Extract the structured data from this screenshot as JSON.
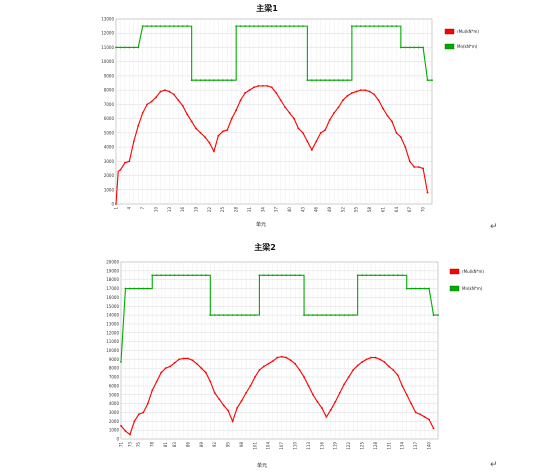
{
  "page": {
    "paragraph_mark": "↵"
  },
  "charts": [
    {
      "title": "主梁1",
      "xlabel": "单元",
      "x_ticks": [
        "1",
        "4",
        "7",
        "10",
        "13",
        "16",
        "19",
        "22",
        "25",
        "28",
        "31",
        "34",
        "37",
        "40",
        "43",
        "46",
        "49",
        "52",
        "55",
        "58",
        "61",
        "64",
        "67",
        "70"
      ],
      "y_ticks": [
        "0",
        "1000",
        "2000",
        "3000",
        "4000",
        "5000",
        "6000",
        "7000",
        "8000",
        "9000",
        "10000",
        "11000",
        "12000",
        "13000"
      ],
      "legend": [
        "rMu(kN*m)",
        "Mn(kN*m)"
      ]
    },
    {
      "title": "主梁2",
      "xlabel": "单元",
      "x_ticks": [
        "71",
        "73",
        "75",
        "78",
        "81",
        "83",
        "86",
        "89",
        "92",
        "95",
        "98",
        "101",
        "104",
        "107",
        "110",
        "113",
        "116",
        "119",
        "122",
        "125",
        "128",
        "131",
        "134",
        "137",
        "140"
      ],
      "y_ticks": [
        "0",
        "1000",
        "2000",
        "3000",
        "4000",
        "5000",
        "6000",
        "7000",
        "8000",
        "9000",
        "10000",
        "11000",
        "12000",
        "13000",
        "14000",
        "15000",
        "16000",
        "17000",
        "18000",
        "19000",
        "20000"
      ],
      "legend": [
        "rMu(kN*m)",
        "Mn(kN*m)"
      ]
    }
  ],
  "chart_data": [
    {
      "type": "line",
      "title": "主梁1",
      "xlabel": "单元",
      "ylabel": "",
      "x_range": [
        1,
        72
      ],
      "ylim": [
        0,
        13000
      ],
      "grid": true,
      "legend_position": "right",
      "series": [
        {
          "name": "rMu(kN*m)",
          "color": "#ff0000",
          "points": [
            [
              1,
              0
            ],
            [
              1.5,
              2300
            ],
            [
              2,
              2400
            ],
            [
              3,
              2900
            ],
            [
              4,
              3000
            ],
            [
              5,
              4400
            ],
            [
              6,
              5500
            ],
            [
              7,
              6400
            ],
            [
              8,
              7000
            ],
            [
              9,
              7200
            ],
            [
              10,
              7500
            ],
            [
              11,
              7900
            ],
            [
              12,
              8000
            ],
            [
              13,
              7900
            ],
            [
              14,
              7700
            ],
            [
              15,
              7300
            ],
            [
              16,
              6900
            ],
            [
              17,
              6300
            ],
            [
              18,
              5800
            ],
            [
              19,
              5300
            ],
            [
              20,
              5000
            ],
            [
              21,
              4700
            ],
            [
              22,
              4300
            ],
            [
              23,
              3700
            ],
            [
              24,
              4800
            ],
            [
              25,
              5100
            ],
            [
              26,
              5200
            ],
            [
              27,
              6000
            ],
            [
              28,
              6600
            ],
            [
              29,
              7300
            ],
            [
              30,
              7800
            ],
            [
              31,
              8000
            ],
            [
              32,
              8200
            ],
            [
              33,
              8300
            ],
            [
              34,
              8300
            ],
            [
              35,
              8300
            ],
            [
              36,
              8200
            ],
            [
              37,
              7800
            ],
            [
              38,
              7300
            ],
            [
              39,
              6800
            ],
            [
              40,
              6400
            ],
            [
              41,
              6000
            ],
            [
              42,
              5300
            ],
            [
              43,
              5000
            ],
            [
              44,
              4400
            ],
            [
              45,
              3800
            ],
            [
              46,
              4400
            ],
            [
              47,
              5000
            ],
            [
              48,
              5200
            ],
            [
              49,
              5900
            ],
            [
              50,
              6400
            ],
            [
              51,
              6800
            ],
            [
              52,
              7300
            ],
            [
              53,
              7600
            ],
            [
              54,
              7800
            ],
            [
              55,
              7900
            ],
            [
              56,
              8000
            ],
            [
              57,
              8000
            ],
            [
              58,
              7900
            ],
            [
              59,
              7700
            ],
            [
              60,
              7300
            ],
            [
              61,
              6700
            ],
            [
              62,
              6200
            ],
            [
              63,
              5800
            ],
            [
              64,
              5000
            ],
            [
              65,
              4700
            ],
            [
              66,
              4000
            ],
            [
              67,
              3000
            ],
            [
              68,
              2600
            ],
            [
              69,
              2600
            ],
            [
              70,
              2500
            ],
            [
              71,
              800
            ]
          ]
        },
        {
          "name": "Mn(kN*m)",
          "color": "#00aa00",
          "points": [
            [
              1,
              11000
            ],
            [
              6,
              11000
            ],
            [
              7,
              12500
            ],
            [
              18,
              12500
            ],
            [
              18,
              8700
            ],
            [
              28,
              8700
            ],
            [
              28,
              12500
            ],
            [
              44,
              12500
            ],
            [
              44,
              8700
            ],
            [
              54,
              8700
            ],
            [
              54,
              12500
            ],
            [
              65,
              12500
            ],
            [
              65,
              11000
            ],
            [
              70,
              11000
            ],
            [
              71,
              8700
            ],
            [
              72,
              8700
            ]
          ]
        }
      ]
    },
    {
      "type": "line",
      "title": "主梁2",
      "xlabel": "单元",
      "ylabel": "",
      "x_range": [
        71,
        142
      ],
      "ylim": [
        0,
        20000
      ],
      "grid": true,
      "legend_position": "right",
      "series": [
        {
          "name": "rMu(kN*m)",
          "color": "#ff0000",
          "points": [
            [
              71,
              1500
            ],
            [
              72,
              900
            ],
            [
              73,
              500
            ],
            [
              74,
              2000
            ],
            [
              75,
              2800
            ],
            [
              76,
              3000
            ],
            [
              77,
              4000
            ],
            [
              78,
              5500
            ],
            [
              79,
              6500
            ],
            [
              80,
              7500
            ],
            [
              81,
              8000
            ],
            [
              82,
              8200
            ],
            [
              83,
              8600
            ],
            [
              84,
              9000
            ],
            [
              85,
              9100
            ],
            [
              86,
              9100
            ],
            [
              87,
              8900
            ],
            [
              88,
              8500
            ],
            [
              89,
              8000
            ],
            [
              90,
              7500
            ],
            [
              91,
              6500
            ],
            [
              92,
              5200
            ],
            [
              93,
              4500
            ],
            [
              94,
              3800
            ],
            [
              95,
              3200
            ],
            [
              96,
              2000
            ],
            [
              97,
              3500
            ],
            [
              98,
              4300
            ],
            [
              99,
              5200
            ],
            [
              100,
              6000
            ],
            [
              101,
              7000
            ],
            [
              102,
              7800
            ],
            [
              103,
              8200
            ],
            [
              104,
              8500
            ],
            [
              105,
              8800
            ],
            [
              106,
              9200
            ],
            [
              107,
              9300
            ],
            [
              108,
              9200
            ],
            [
              109,
              8900
            ],
            [
              110,
              8500
            ],
            [
              111,
              7800
            ],
            [
              112,
              7000
            ],
            [
              113,
              6000
            ],
            [
              114,
              5000
            ],
            [
              115,
              4200
            ],
            [
              116,
              3500
            ],
            [
              117,
              2500
            ],
            [
              118,
              3300
            ],
            [
              119,
              4200
            ],
            [
              120,
              5200
            ],
            [
              121,
              6200
            ],
            [
              122,
              7000
            ],
            [
              123,
              7800
            ],
            [
              124,
              8300
            ],
            [
              125,
              8700
            ],
            [
              126,
              9000
            ],
            [
              127,
              9200
            ],
            [
              128,
              9200
            ],
            [
              129,
              9000
            ],
            [
              130,
              8700
            ],
            [
              131,
              8200
            ],
            [
              132,
              7800
            ],
            [
              133,
              7200
            ],
            [
              134,
              6000
            ],
            [
              135,
              5000
            ],
            [
              136,
              4000
            ],
            [
              137,
              3000
            ],
            [
              138,
              2800
            ],
            [
              139,
              2500
            ],
            [
              140,
              2200
            ],
            [
              141,
              1200
            ]
          ]
        },
        {
          "name": "Mn(kN*m)",
          "color": "#00aa00",
          "points": [
            [
              71,
              8700
            ],
            [
              72,
              17000
            ],
            [
              78,
              17000
            ],
            [
              78,
              18500
            ],
            [
              91,
              18500
            ],
            [
              91,
              14000
            ],
            [
              102,
              14000
            ],
            [
              102,
              18500
            ],
            [
              112,
              18500
            ],
            [
              112,
              14000
            ],
            [
              124,
              14000
            ],
            [
              124,
              18500
            ],
            [
              135,
              18500
            ],
            [
              135,
              17000
            ],
            [
              140,
              17000
            ],
            [
              141,
              14000
            ],
            [
              142,
              14000
            ]
          ]
        }
      ]
    }
  ]
}
